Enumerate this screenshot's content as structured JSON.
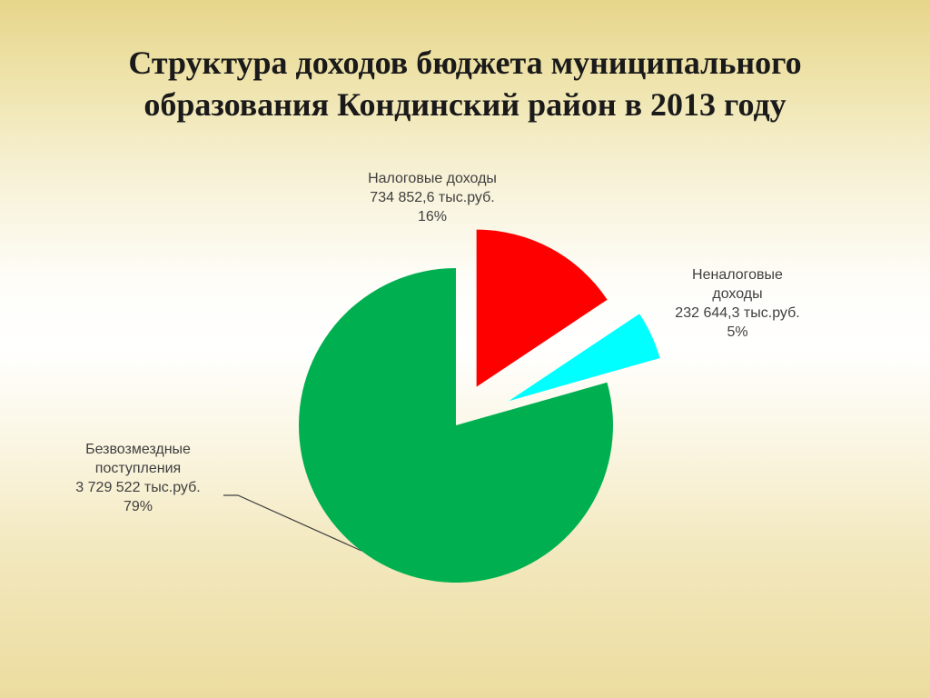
{
  "title": {
    "line1": "Структура доходов бюджета муниципального",
    "line2": "образования Кондинский район в 2013 году"
  },
  "chart_data": {
    "type": "pie",
    "title": "Структура доходов бюджета муниципального образования Кондинский район в 2013 году",
    "exploded": true,
    "slices": [
      {
        "label_lines": [
          "Налоговые доходы"
        ],
        "value": 734852.6,
        "value_text": "734 852,6 тыс.руб.",
        "percent": 16,
        "percent_text": "16%",
        "color": "#ff0000"
      },
      {
        "label_lines": [
          "Неналоговые",
          "доходы"
        ],
        "value": 232644.3,
        "value_text": "232 644,3 тыс.руб.",
        "percent": 5,
        "percent_text": "5%",
        "color": "#00ffff"
      },
      {
        "label_lines": [
          "Безвозмездные",
          "поступления"
        ],
        "value": 3729522,
        "value_text": "3 729 522 тыс.руб.",
        "percent": 79,
        "percent_text": "79%",
        "color": "#00b050"
      }
    ]
  }
}
